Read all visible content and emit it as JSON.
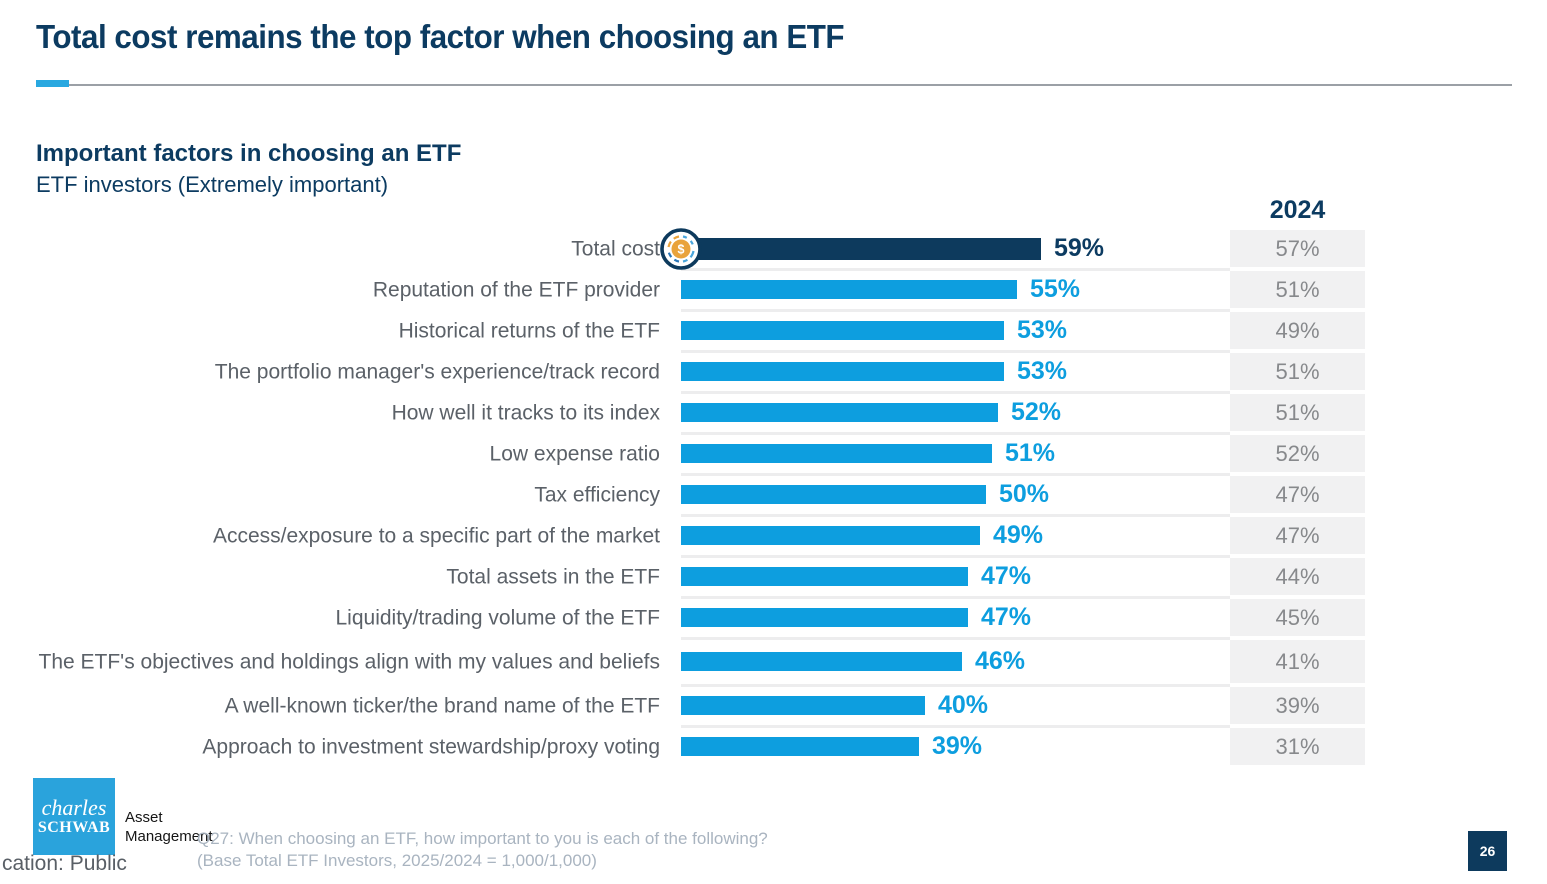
{
  "slide": {
    "title": "Total cost remains the top factor when choosing an ETF",
    "page_number": "26",
    "classification_visible_text": "cation: Public",
    "footnote_line1": "Q27: When choosing an ETF, how important to you is each of the following?",
    "footnote_line2": "(Base Total ETF Investors, 2025/2024 = 1,000/1,000)"
  },
  "logo": {
    "brand_line1": "charles",
    "brand_line2": "SCHWAB",
    "unit_line1": "Asset",
    "unit_line2": "Management"
  },
  "chart_data": {
    "type": "bar",
    "orientation": "horizontal",
    "title": "Important factors in choosing an ETF",
    "subtitle": "ETF investors (Extremely important)",
    "comparison_column_header": "2024",
    "value_suffix": "%",
    "xlim": [
      0,
      100
    ],
    "grid": false,
    "highlight_index": 0,
    "highlight_icon": "dollar-coin-icon",
    "categories": [
      "Total cost",
      "Reputation of the ETF provider",
      "Historical returns of the ETF",
      "The portfolio manager's experience/track record",
      "How well it tracks to its index",
      "Low expense ratio",
      "Tax efficiency",
      "Access/exposure to a specific part of the market",
      "Total assets in the ETF",
      "Liquidity/trading volume of the ETF",
      "The ETF's objectives and holdings align with my values and beliefs",
      "A well-known ticker/the brand name of the ETF",
      "Approach to investment stewardship/proxy voting"
    ],
    "series": [
      {
        "name": "2025",
        "values": [
          59,
          55,
          53,
          53,
          52,
          51,
          50,
          49,
          47,
          47,
          46,
          40,
          39
        ]
      },
      {
        "name": "2024",
        "values": [
          57,
          51,
          49,
          51,
          51,
          52,
          47,
          47,
          44,
          45,
          41,
          39,
          31
        ]
      }
    ],
    "colors": {
      "bar": "#0d9edf",
      "highlight_bar": "#0d3a5d",
      "value_label": "#0d9edf",
      "highlight_value_label": "#0c3b61",
      "prior_year_box_bg": "#f1f1f2",
      "prior_year_text": "#87898c",
      "category_label": "#5b6168",
      "navy": "#0c3b61",
      "accent_underline": "#29a8e0",
      "logo_blue": "#2aa3dc",
      "coin_gold": "#e9a33c"
    }
  }
}
